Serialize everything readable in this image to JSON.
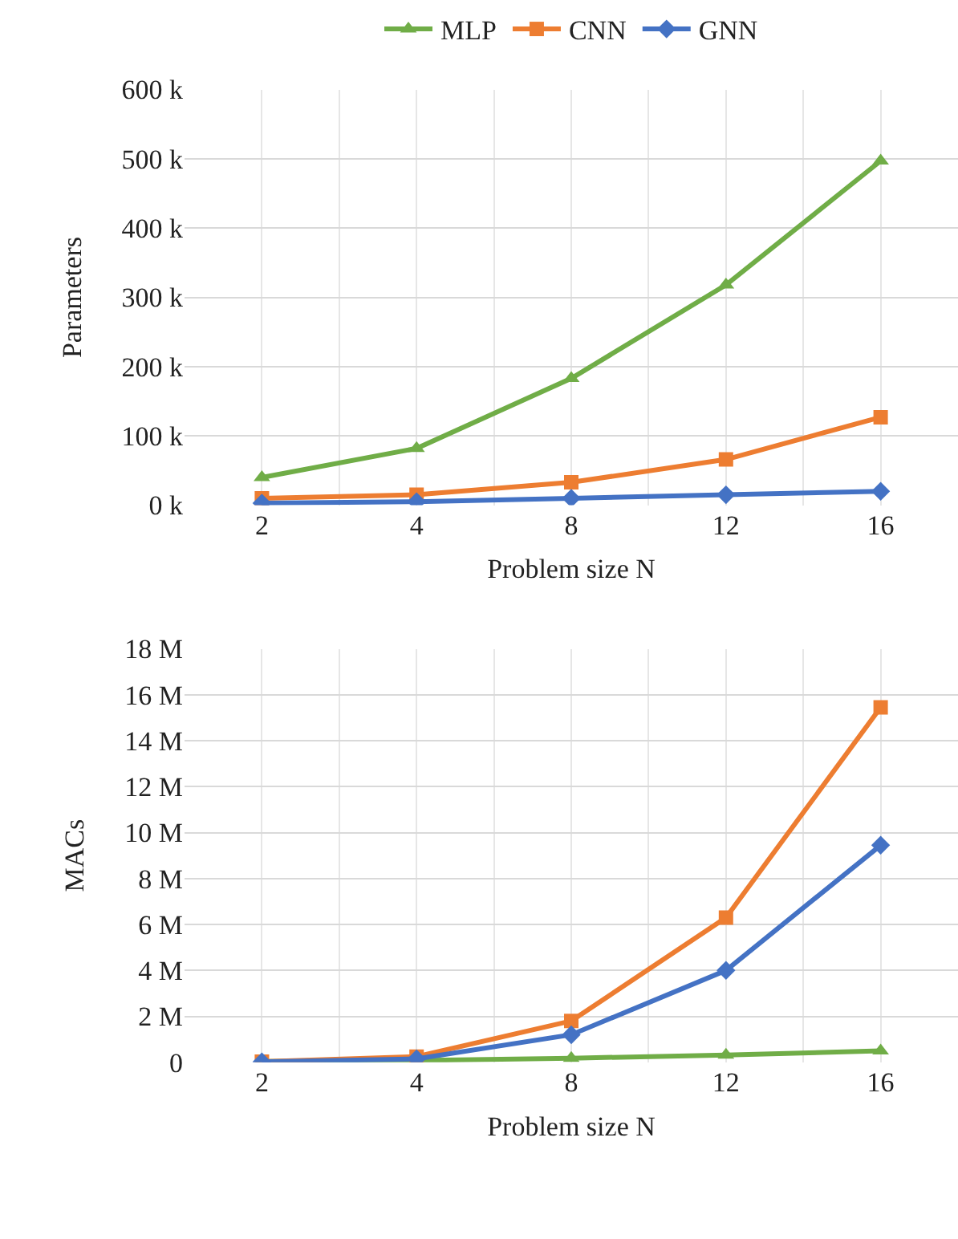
{
  "chart_data": [
    {
      "type": "line",
      "xlabel": "Problem size N",
      "ylabel": "Parameters",
      "categories": [
        "2",
        "4",
        "8",
        "12",
        "16"
      ],
      "legend": "top",
      "grid": true,
      "ylim": [
        0,
        600000
      ],
      "yticks": [
        {
          "value": 0,
          "label": "0 k"
        },
        {
          "value": 100000,
          "label": "100 k"
        },
        {
          "value": 200000,
          "label": "200 k"
        },
        {
          "value": 300000,
          "label": "300 k"
        },
        {
          "value": 400000,
          "label": "400 k"
        },
        {
          "value": 500000,
          "label": "500 k"
        },
        {
          "value": 600000,
          "label": "600 k"
        }
      ],
      "series": [
        {
          "name": "MLP",
          "color": "#70ad47",
          "marker": "triangle",
          "values": [
            40000,
            82000,
            183000,
            318000,
            497000
          ]
        },
        {
          "name": "CNN",
          "color": "#ed7d31",
          "marker": "square",
          "values": [
            10000,
            15000,
            33000,
            66000,
            127000
          ]
        },
        {
          "name": "GNN",
          "color": "#4472c4",
          "marker": "diamond",
          "values": [
            3000,
            5000,
            10000,
            15000,
            20000
          ]
        }
      ]
    },
    {
      "type": "line",
      "xlabel": "Problem size N",
      "ylabel": "MACs",
      "categories": [
        "2",
        "4",
        "8",
        "12",
        "16"
      ],
      "grid": true,
      "ylim": [
        0,
        18000000
      ],
      "yticks": [
        0,
        {
          "value": 2000000,
          "label": "2 M"
        },
        {
          "value": 4000000,
          "label": "4 M"
        },
        {
          "value": 6000000,
          "label": "6 M"
        },
        {
          "value": 8000000,
          "label": "8 M"
        },
        {
          "value": 10000000,
          "label": "10 M"
        },
        {
          "value": 12000000,
          "label": "12 M"
        },
        {
          "value": 14000000,
          "label": "14 M"
        },
        {
          "value": 16000000,
          "label": "16 M"
        },
        {
          "value": 18000000,
          "label": "18 M"
        }
      ],
      "series": [
        {
          "color": "#70ad47",
          "marker": "triangle",
          "values": [
            40000,
            80000,
            180000,
            320000,
            500000
          ]
        },
        {
          "color": "#ed7d31",
          "marker": "square",
          "values": [
            30000,
            250000,
            1800000,
            6300000,
            15450000
          ]
        },
        {
          "color": "#4472c4",
          "marker": "diamond",
          "values": [
            20000,
            150000,
            1200000,
            4000000,
            9450000
          ]
        }
      ]
    }
  ]
}
